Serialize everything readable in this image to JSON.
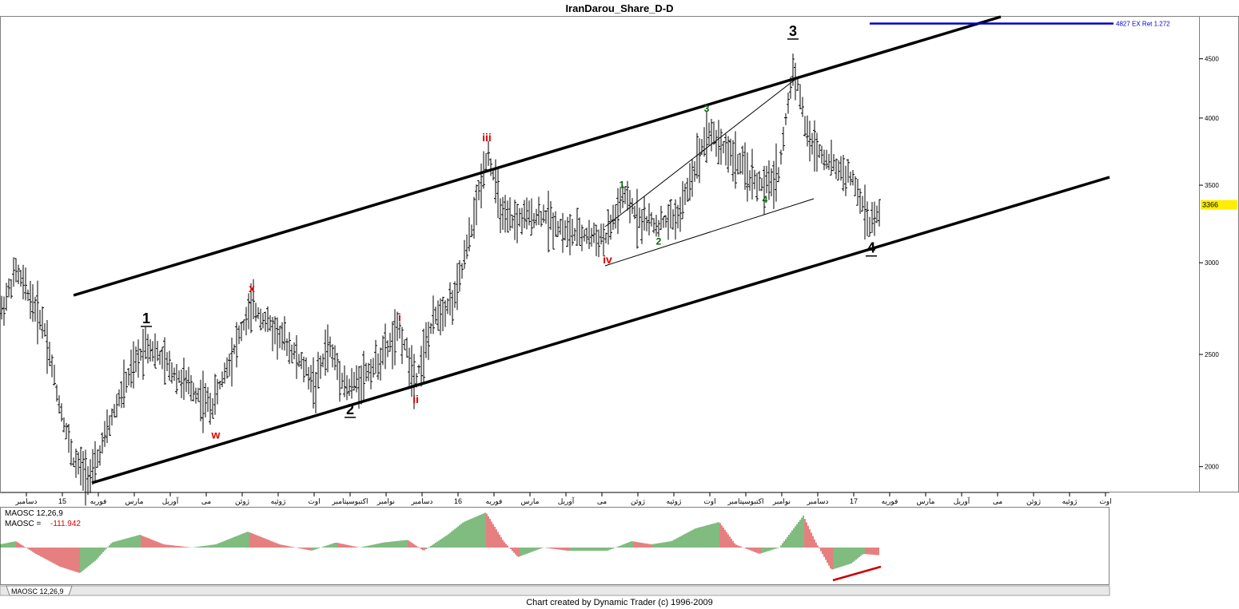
{
  "title": "IranDarou_Share_D-D",
  "footer": "Chart created by Dynamic Trader  (c) 1996-2009",
  "colors": {
    "bar": "#000000",
    "channel": "#000000",
    "target_line": "#0000cc",
    "wave_red": "#dd0000",
    "wave_green": "#006600",
    "osc_up": "#007700",
    "osc_down": "#cc0000",
    "price_badge": "#ffee00"
  },
  "chart_data": {
    "type": "bar",
    "price_axis": {
      "scale": "log",
      "ylim": [
        1900,
        4900
      ],
      "ticks": [
        2000,
        2500,
        3000,
        3500,
        4000,
        4500
      ]
    },
    "last_price": "3366",
    "target": {
      "value": 4827,
      "label": "4827 EX Ret 1.272"
    },
    "x_labels": [
      "دسامبر",
      "15",
      "فوریه",
      "مارس",
      "آوریل",
      "می",
      "ژوئن",
      "ژوئیه",
      "اوت",
      "اکتبوسپتامبر",
      "نوامبر",
      "دسامبر",
      "16",
      "فوریه",
      "مارس",
      "آوریل",
      "می",
      "ژوئن",
      "ژوئیه",
      "اوت",
      "اکتبوسپتامبر",
      "نوامبر",
      "دسامبر",
      "17",
      "فوریه",
      "مارس",
      "آوریل",
      "می",
      "ژوئن",
      "ژوئیه",
      "اوت"
    ],
    "anchors": [
      [
        0,
        2700
      ],
      [
        20,
        2950
      ],
      [
        55,
        2650
      ],
      [
        72,
        2300
      ],
      [
        92,
        2020
      ],
      [
        115,
        1960
      ],
      [
        150,
        2300
      ],
      [
        183,
        2560
      ],
      [
        220,
        2400
      ],
      [
        265,
        2250
      ],
      [
        315,
        2750
      ],
      [
        360,
        2550
      ],
      [
        395,
        2350
      ],
      [
        410,
        2550
      ],
      [
        435,
        2330
      ],
      [
        470,
        2450
      ],
      [
        500,
        2620
      ],
      [
        520,
        2380
      ],
      [
        545,
        2700
      ],
      [
        570,
        2800
      ],
      [
        590,
        3200
      ],
      [
        610,
        3750
      ],
      [
        630,
        3250
      ],
      [
        680,
        3300
      ],
      [
        710,
        3180
      ],
      [
        758,
        3150
      ],
      [
        780,
        3420
      ],
      [
        800,
        3280
      ],
      [
        822,
        3230
      ],
      [
        850,
        3300
      ],
      [
        885,
        3900
      ],
      [
        910,
        3750
      ],
      [
        940,
        3550
      ],
      [
        957,
        3480
      ],
      [
        975,
        3600
      ],
      [
        993,
        4450
      ],
      [
        1010,
        3850
      ],
      [
        1040,
        3650
      ],
      [
        1065,
        3550
      ],
      [
        1088,
        3240
      ],
      [
        1100,
        3300
      ]
    ],
    "wave_labels": [
      {
        "text": "1",
        "color": "black",
        "major": true,
        "x": 183,
        "v": 2660
      },
      {
        "text": "2",
        "color": "black",
        "major": true,
        "x": 438,
        "v": 2220
      },
      {
        "text": "3",
        "color": "black",
        "major": true,
        "x": 992,
        "v": 4710
      },
      {
        "text": "4",
        "color": "black",
        "major": true,
        "x": 1090,
        "v": 3060
      },
      {
        "text": "w",
        "color": "red",
        "major": false,
        "x": 270,
        "v": 2115
      },
      {
        "text": "x",
        "color": "red",
        "major": false,
        "x": 315,
        "v": 2830
      },
      {
        "text": "i",
        "color": "red",
        "major": false,
        "x": 500,
        "v": 2670
      },
      {
        "text": "ii",
        "color": "red",
        "major": false,
        "x": 520,
        "v": 2270
      },
      {
        "text": "iii",
        "color": "red",
        "major": false,
        "x": 609,
        "v": 3820
      },
      {
        "text": "iv",
        "color": "red",
        "major": false,
        "x": 760,
        "v": 2995
      },
      {
        "text": "1",
        "color": "green",
        "major": false,
        "x": 778,
        "v": 3480
      },
      {
        "text": "2",
        "color": "green",
        "major": false,
        "x": 824,
        "v": 3110
      },
      {
        "text": "3",
        "color": "green",
        "major": false,
        "x": 884,
        "v": 4050
      },
      {
        "text": "4",
        "color": "green",
        "major": false,
        "x": 957,
        "v": 3380
      }
    ],
    "oscillator": {
      "name": "MAOSC 12,26,9",
      "readout_label": "MAOSC =",
      "readout_value": "-111.942",
      "tab": "MAOSC 12,26,9",
      "anchors": [
        [
          0,
          5
        ],
        [
          20,
          10
        ],
        [
          45,
          -10
        ],
        [
          75,
          -30
        ],
        [
          100,
          -40
        ],
        [
          120,
          -20
        ],
        [
          140,
          8
        ],
        [
          175,
          20
        ],
        [
          205,
          5
        ],
        [
          240,
          0
        ],
        [
          270,
          5
        ],
        [
          310,
          25
        ],
        [
          350,
          5
        ],
        [
          390,
          -5
        ],
        [
          420,
          8
        ],
        [
          450,
          0
        ],
        [
          480,
          8
        ],
        [
          510,
          12
        ],
        [
          530,
          -5
        ],
        [
          560,
          20
        ],
        [
          580,
          40
        ],
        [
          608,
          55
        ],
        [
          630,
          10
        ],
        [
          648,
          -15
        ],
        [
          680,
          0
        ],
        [
          710,
          -5
        ],
        [
          760,
          -5
        ],
        [
          790,
          10
        ],
        [
          815,
          5
        ],
        [
          840,
          10
        ],
        [
          870,
          30
        ],
        [
          900,
          40
        ],
        [
          920,
          5
        ],
        [
          950,
          -10
        ],
        [
          975,
          0
        ],
        [
          1005,
          50
        ],
        [
          1020,
          10
        ],
        [
          1040,
          -35
        ],
        [
          1065,
          -25
        ],
        [
          1080,
          -10
        ],
        [
          1100,
          -12
        ]
      ]
    }
  }
}
